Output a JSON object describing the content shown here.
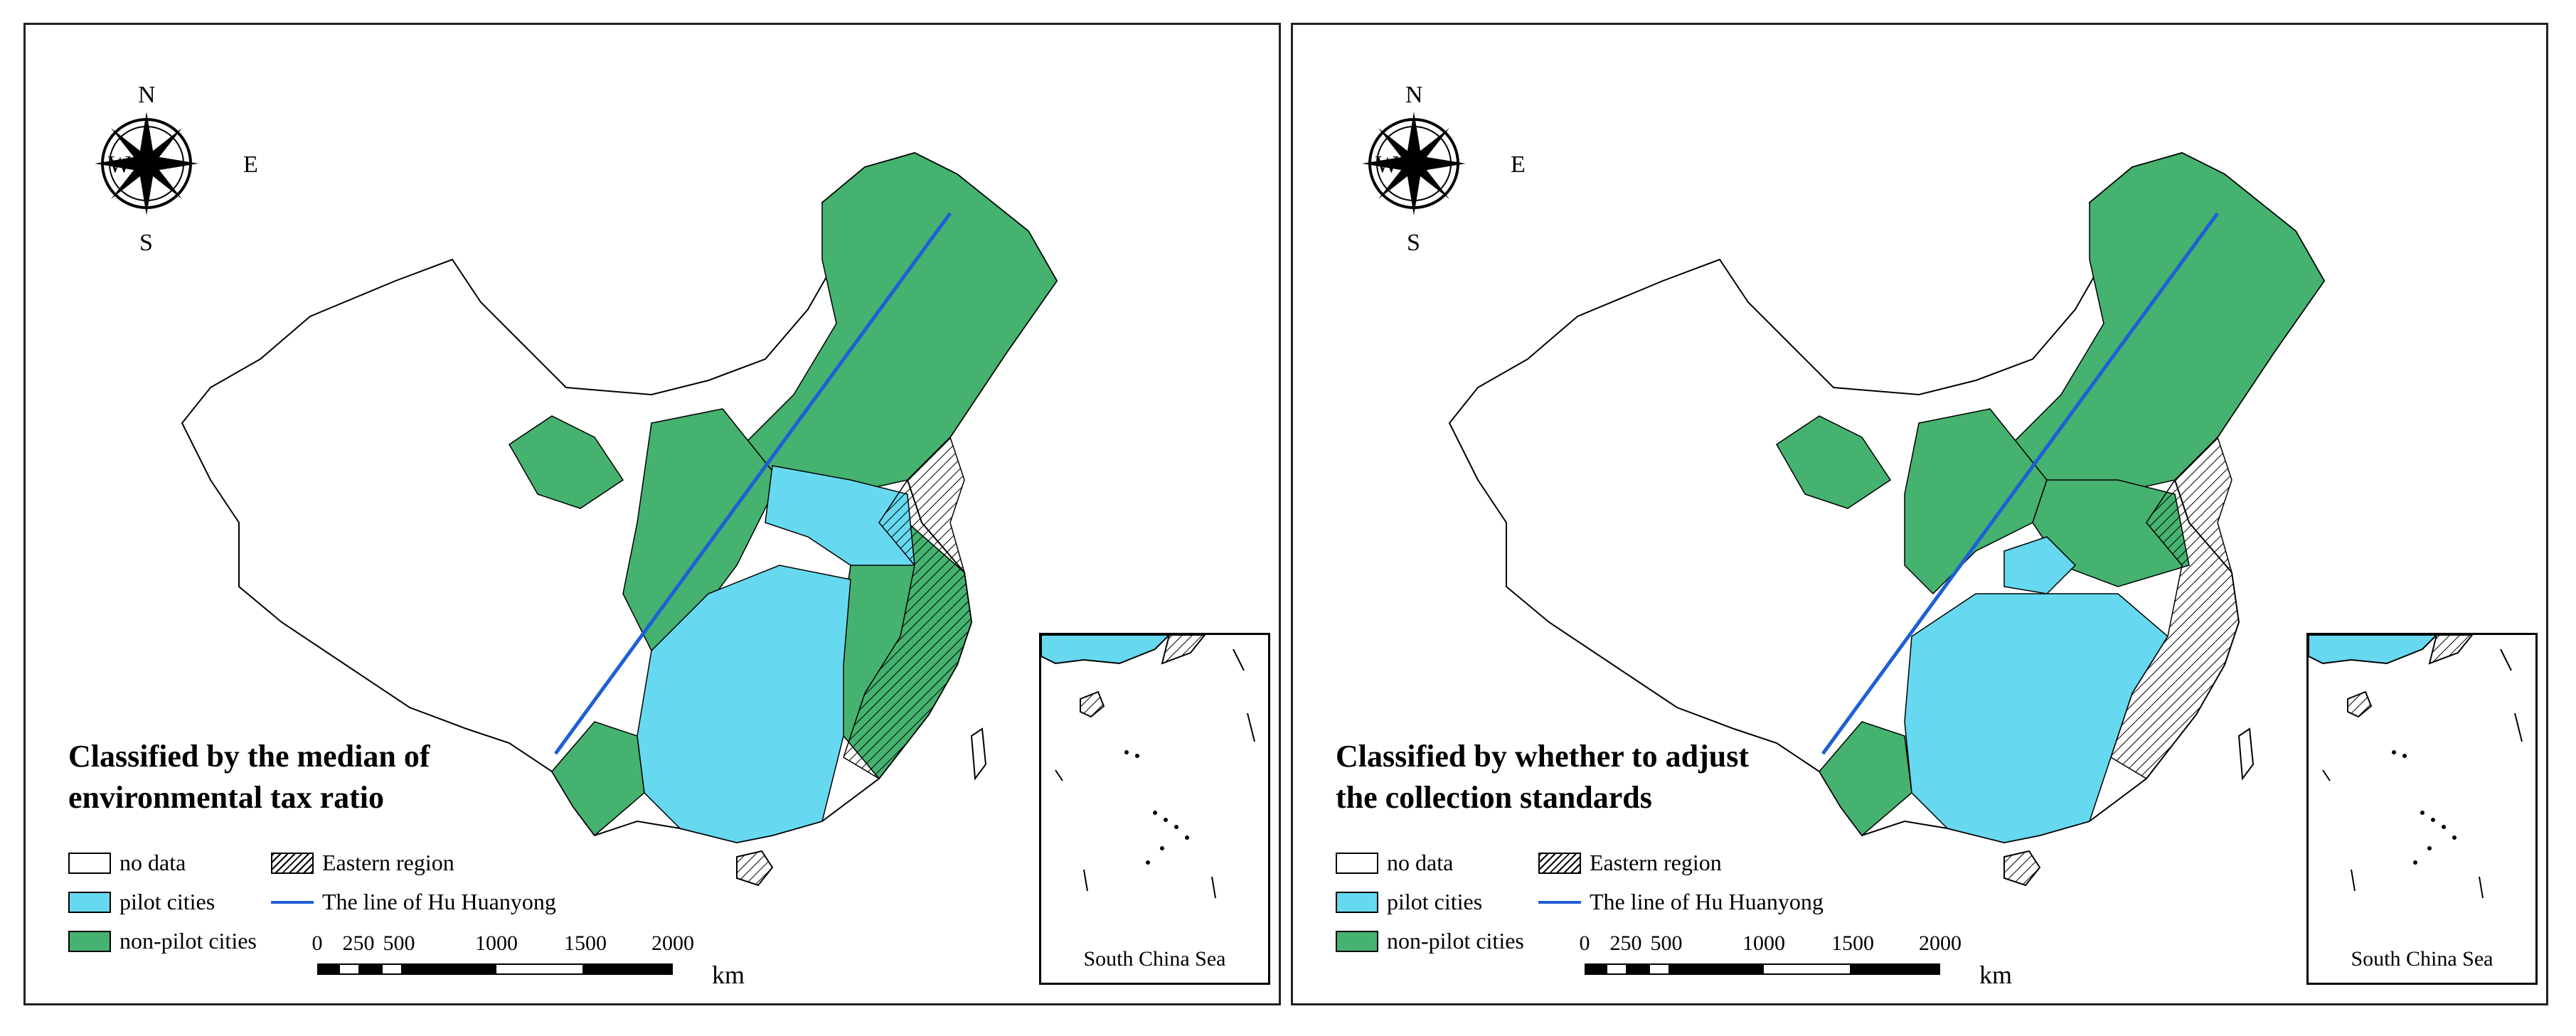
{
  "colors": {
    "no_data": "#ffffff",
    "pilot_cities": "#66d9f0",
    "non_pilot_cities": "#45b26f",
    "hu_line": "#1f5fd6"
  },
  "compass": {
    "n": "N",
    "s": "S",
    "w": "W",
    "e": "E",
    "icon": "compass-rose-icon"
  },
  "legend": {
    "no_data": "no data",
    "pilot_cities": "pilot cities",
    "non_pilot_cities": "non-pilot cities",
    "eastern_region": "Eastern region",
    "hu_line": "The line of Hu Huanyong"
  },
  "scale": {
    "ticks": [
      "0",
      "250",
      "500",
      "1000",
      "1500",
      "2000"
    ],
    "unit": "km"
  },
  "inset": {
    "label": "South China Sea"
  },
  "panels": [
    {
      "title_line1": "Classified by the median of",
      "title_line2": "environmental tax ratio"
    },
    {
      "title_line1": "Classified by whether to adjust",
      "title_line2": "the collection standards"
    }
  ]
}
